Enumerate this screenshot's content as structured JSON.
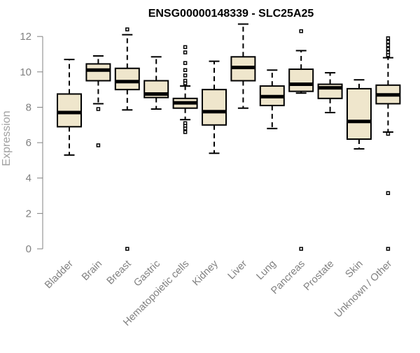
{
  "chart_data": {
    "type": "boxplot",
    "title": "ENSG00000148339 - SLC25A25",
    "xlabel": "",
    "ylabel": "Expression",
    "ylim": [
      0,
      12.6
    ],
    "yticks": [
      0,
      2,
      4,
      6,
      8,
      10,
      12
    ],
    "grid": false,
    "colors": {
      "box_fill": "#efe6cc",
      "stroke": "#000000",
      "axis": "#808080"
    },
    "categories": [
      "Bladder",
      "Brain",
      "Breast",
      "Gastric",
      "Hematopoietic cells",
      "Kidney",
      "Liver",
      "Lung",
      "Pancreas",
      "Prostate",
      "Skin",
      "Unknown / Other"
    ],
    "boxes": [
      {
        "name": "Bladder",
        "min": 5.3,
        "q1": 6.9,
        "median": 7.7,
        "q3": 8.75,
        "max": 10.7,
        "outliers": []
      },
      {
        "name": "Brain",
        "min": 8.2,
        "q1": 9.5,
        "median": 10.1,
        "q3": 10.45,
        "max": 10.9,
        "outliers": [
          7.9,
          5.85
        ]
      },
      {
        "name": "Breast",
        "min": 7.85,
        "q1": 9.0,
        "median": 9.45,
        "q3": 10.2,
        "max": 12.1,
        "outliers": [
          12.4,
          0.0
        ]
      },
      {
        "name": "Gastric",
        "min": 7.9,
        "q1": 8.55,
        "median": 8.75,
        "q3": 9.5,
        "max": 10.85,
        "outliers": []
      },
      {
        "name": "Hematopoietic cells",
        "min": 7.3,
        "q1": 7.95,
        "median": 8.25,
        "q3": 8.5,
        "max": 9.2,
        "outliers": [
          11.4,
          11.1,
          10.5,
          10.1,
          9.8,
          9.5,
          9.35,
          7.1,
          6.95,
          6.8,
          6.6
        ]
      },
      {
        "name": "Kidney",
        "min": 5.4,
        "q1": 7.0,
        "median": 7.75,
        "q3": 9.0,
        "max": 10.6,
        "outliers": []
      },
      {
        "name": "Liver",
        "min": 7.95,
        "q1": 9.5,
        "median": 10.25,
        "q3": 10.85,
        "max": 12.7,
        "outliers": []
      },
      {
        "name": "Lung",
        "min": 6.8,
        "q1": 8.1,
        "median": 8.6,
        "q3": 9.2,
        "max": 10.1,
        "outliers": []
      },
      {
        "name": "Pancreas",
        "min": 8.8,
        "q1": 8.9,
        "median": 9.3,
        "q3": 10.15,
        "max": 11.2,
        "outliers": [
          12.3,
          0.0
        ]
      },
      {
        "name": "Prostate",
        "min": 7.7,
        "q1": 8.5,
        "median": 9.1,
        "q3": 9.3,
        "max": 9.95,
        "outliers": []
      },
      {
        "name": "Skin",
        "min": 5.65,
        "q1": 6.2,
        "median": 7.2,
        "q3": 9.05,
        "max": 9.55,
        "outliers": []
      },
      {
        "name": "Unknown / Other",
        "min": 6.6,
        "q1": 8.2,
        "median": 8.7,
        "q3": 9.25,
        "max": 10.8,
        "outliers": [
          11.9,
          11.7,
          11.5,
          11.3,
          11.1,
          10.95,
          6.5,
          3.15,
          0.0
        ]
      }
    ]
  }
}
